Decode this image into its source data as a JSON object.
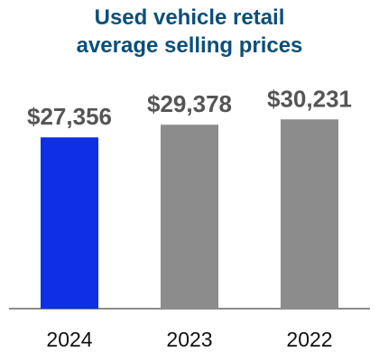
{
  "chart_data": {
    "type": "bar",
    "title_lines": [
      "Used vehicle retail",
      "average selling prices"
    ],
    "categories": [
      "2024",
      "2023",
      "2022"
    ],
    "values": [
      27356,
      29378,
      30231
    ],
    "value_labels": [
      "$27,356",
      "$29,378",
      "$30,231"
    ],
    "colors": [
      "#0d2fe6",
      "#8c8c8c",
      "#8c8c8c"
    ],
    "ylim": [
      0,
      32000
    ],
    "grid": false,
    "legend": "none",
    "xlabel": "",
    "ylabel": ""
  }
}
